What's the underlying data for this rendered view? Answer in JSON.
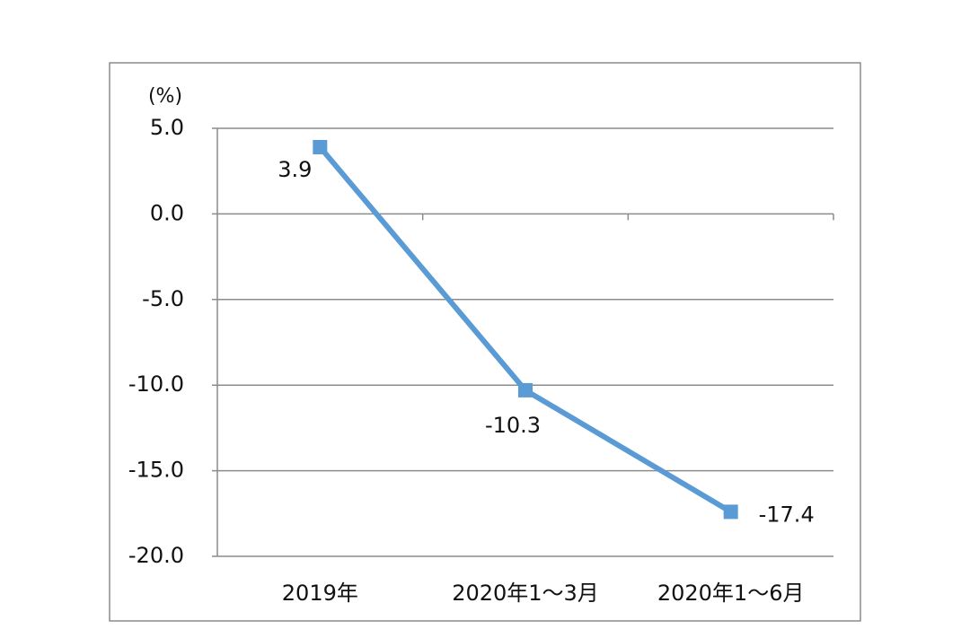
{
  "chart_data": {
    "type": "line",
    "y_label": "(%)",
    "categories": [
      "2019年",
      "2020年1～3月",
      "2020年1～6月"
    ],
    "values": [
      3.9,
      -10.3,
      -17.4
    ],
    "color": "#5b9bd5",
    "ylim": [
      -20,
      5
    ],
    "yticks": [
      {
        "value": -20,
        "label": "-20.0"
      },
      {
        "value": -15,
        "label": "-15.0"
      },
      {
        "value": -10,
        "label": "-10.0"
      },
      {
        "value": -5,
        "label": "-5.0"
      },
      {
        "value": 0,
        "label": "0.0"
      },
      {
        "value": 5,
        "label": "5.0"
      }
    ],
    "grid": true
  }
}
